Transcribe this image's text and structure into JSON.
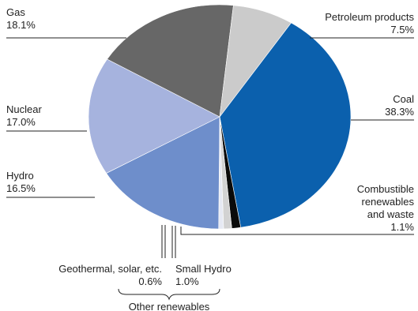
{
  "chart_data": {
    "type": "pie",
    "slices": [
      {
        "name": "Coal",
        "value": 38.3,
        "value_label": "38.3%",
        "color": "#0b60ad"
      },
      {
        "name": "Combustible renewables and waste",
        "name_lines": [
          "Combustible",
          "renewables",
          "and waste"
        ],
        "value": 1.1,
        "value_label": "1.1%",
        "color": "#0a0a0a"
      },
      {
        "name": "Small Hydro",
        "value": 1.0,
        "value_label": "1.0%",
        "color": "#d2d2d2"
      },
      {
        "name": "Geothermal, solar, etc.",
        "value": 0.6,
        "value_label": "0.6%",
        "color": "#e6e9f3"
      },
      {
        "name": "Hydro",
        "value": 16.5,
        "value_label": "16.5%",
        "color": "#6e8ecb"
      },
      {
        "name": "Nuclear",
        "value": 17.0,
        "value_label": "17.0%",
        "color": "#a6b3de"
      },
      {
        "name": "Gas",
        "value": 18.1,
        "value_label": "18.1%",
        "color": "#676767"
      },
      {
        "name": "Petroleum products",
        "value": 7.5,
        "value_label": "7.5%",
        "color": "#cbcbcb"
      }
    ],
    "group_label": "Other renewables"
  }
}
